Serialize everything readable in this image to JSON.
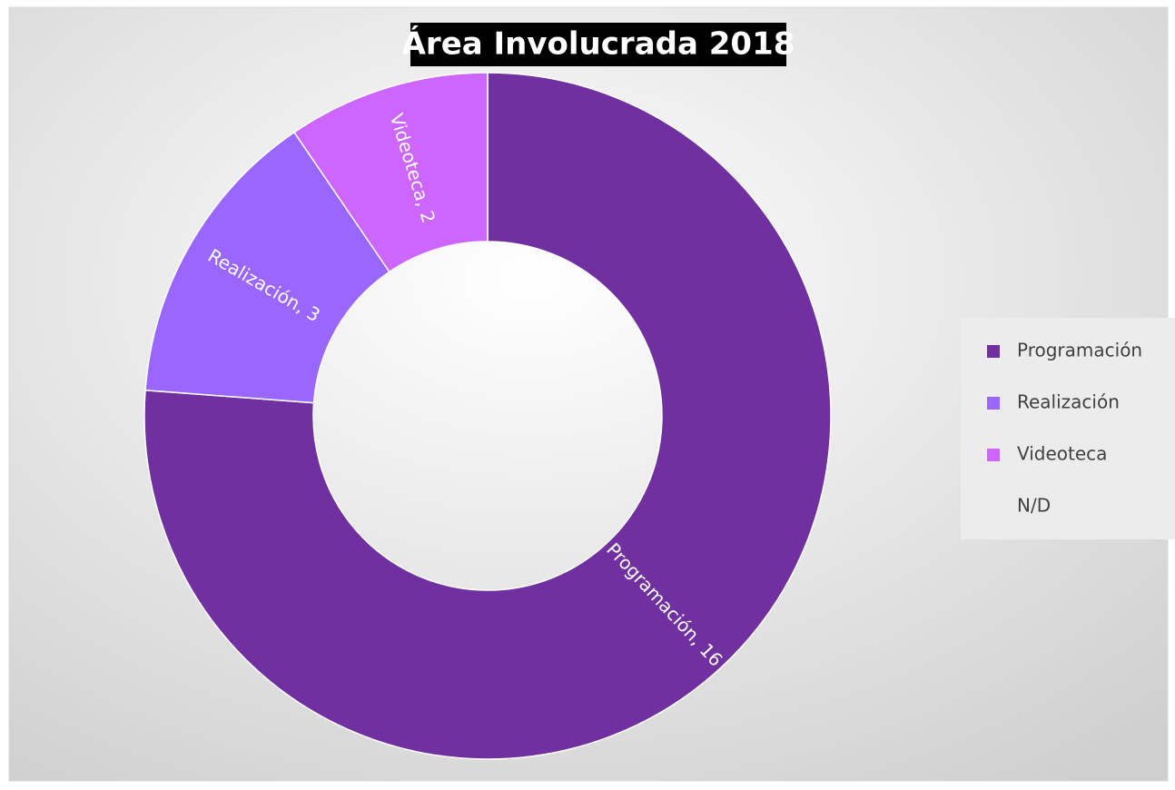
{
  "chart_data": {
    "type": "donut",
    "title": "Área Involucrada 2018",
    "categories": [
      "Programación",
      "Realización",
      "Videoteca",
      "N/D"
    ],
    "values": [
      16,
      3,
      2,
      0
    ],
    "value_labels": [
      "Programación, 16",
      "Realización, 3",
      "Videoteca, 2",
      null
    ],
    "colors": [
      "#7030a0",
      "#9966ff",
      "#cc66ff",
      "none"
    ],
    "legend": "right"
  }
}
